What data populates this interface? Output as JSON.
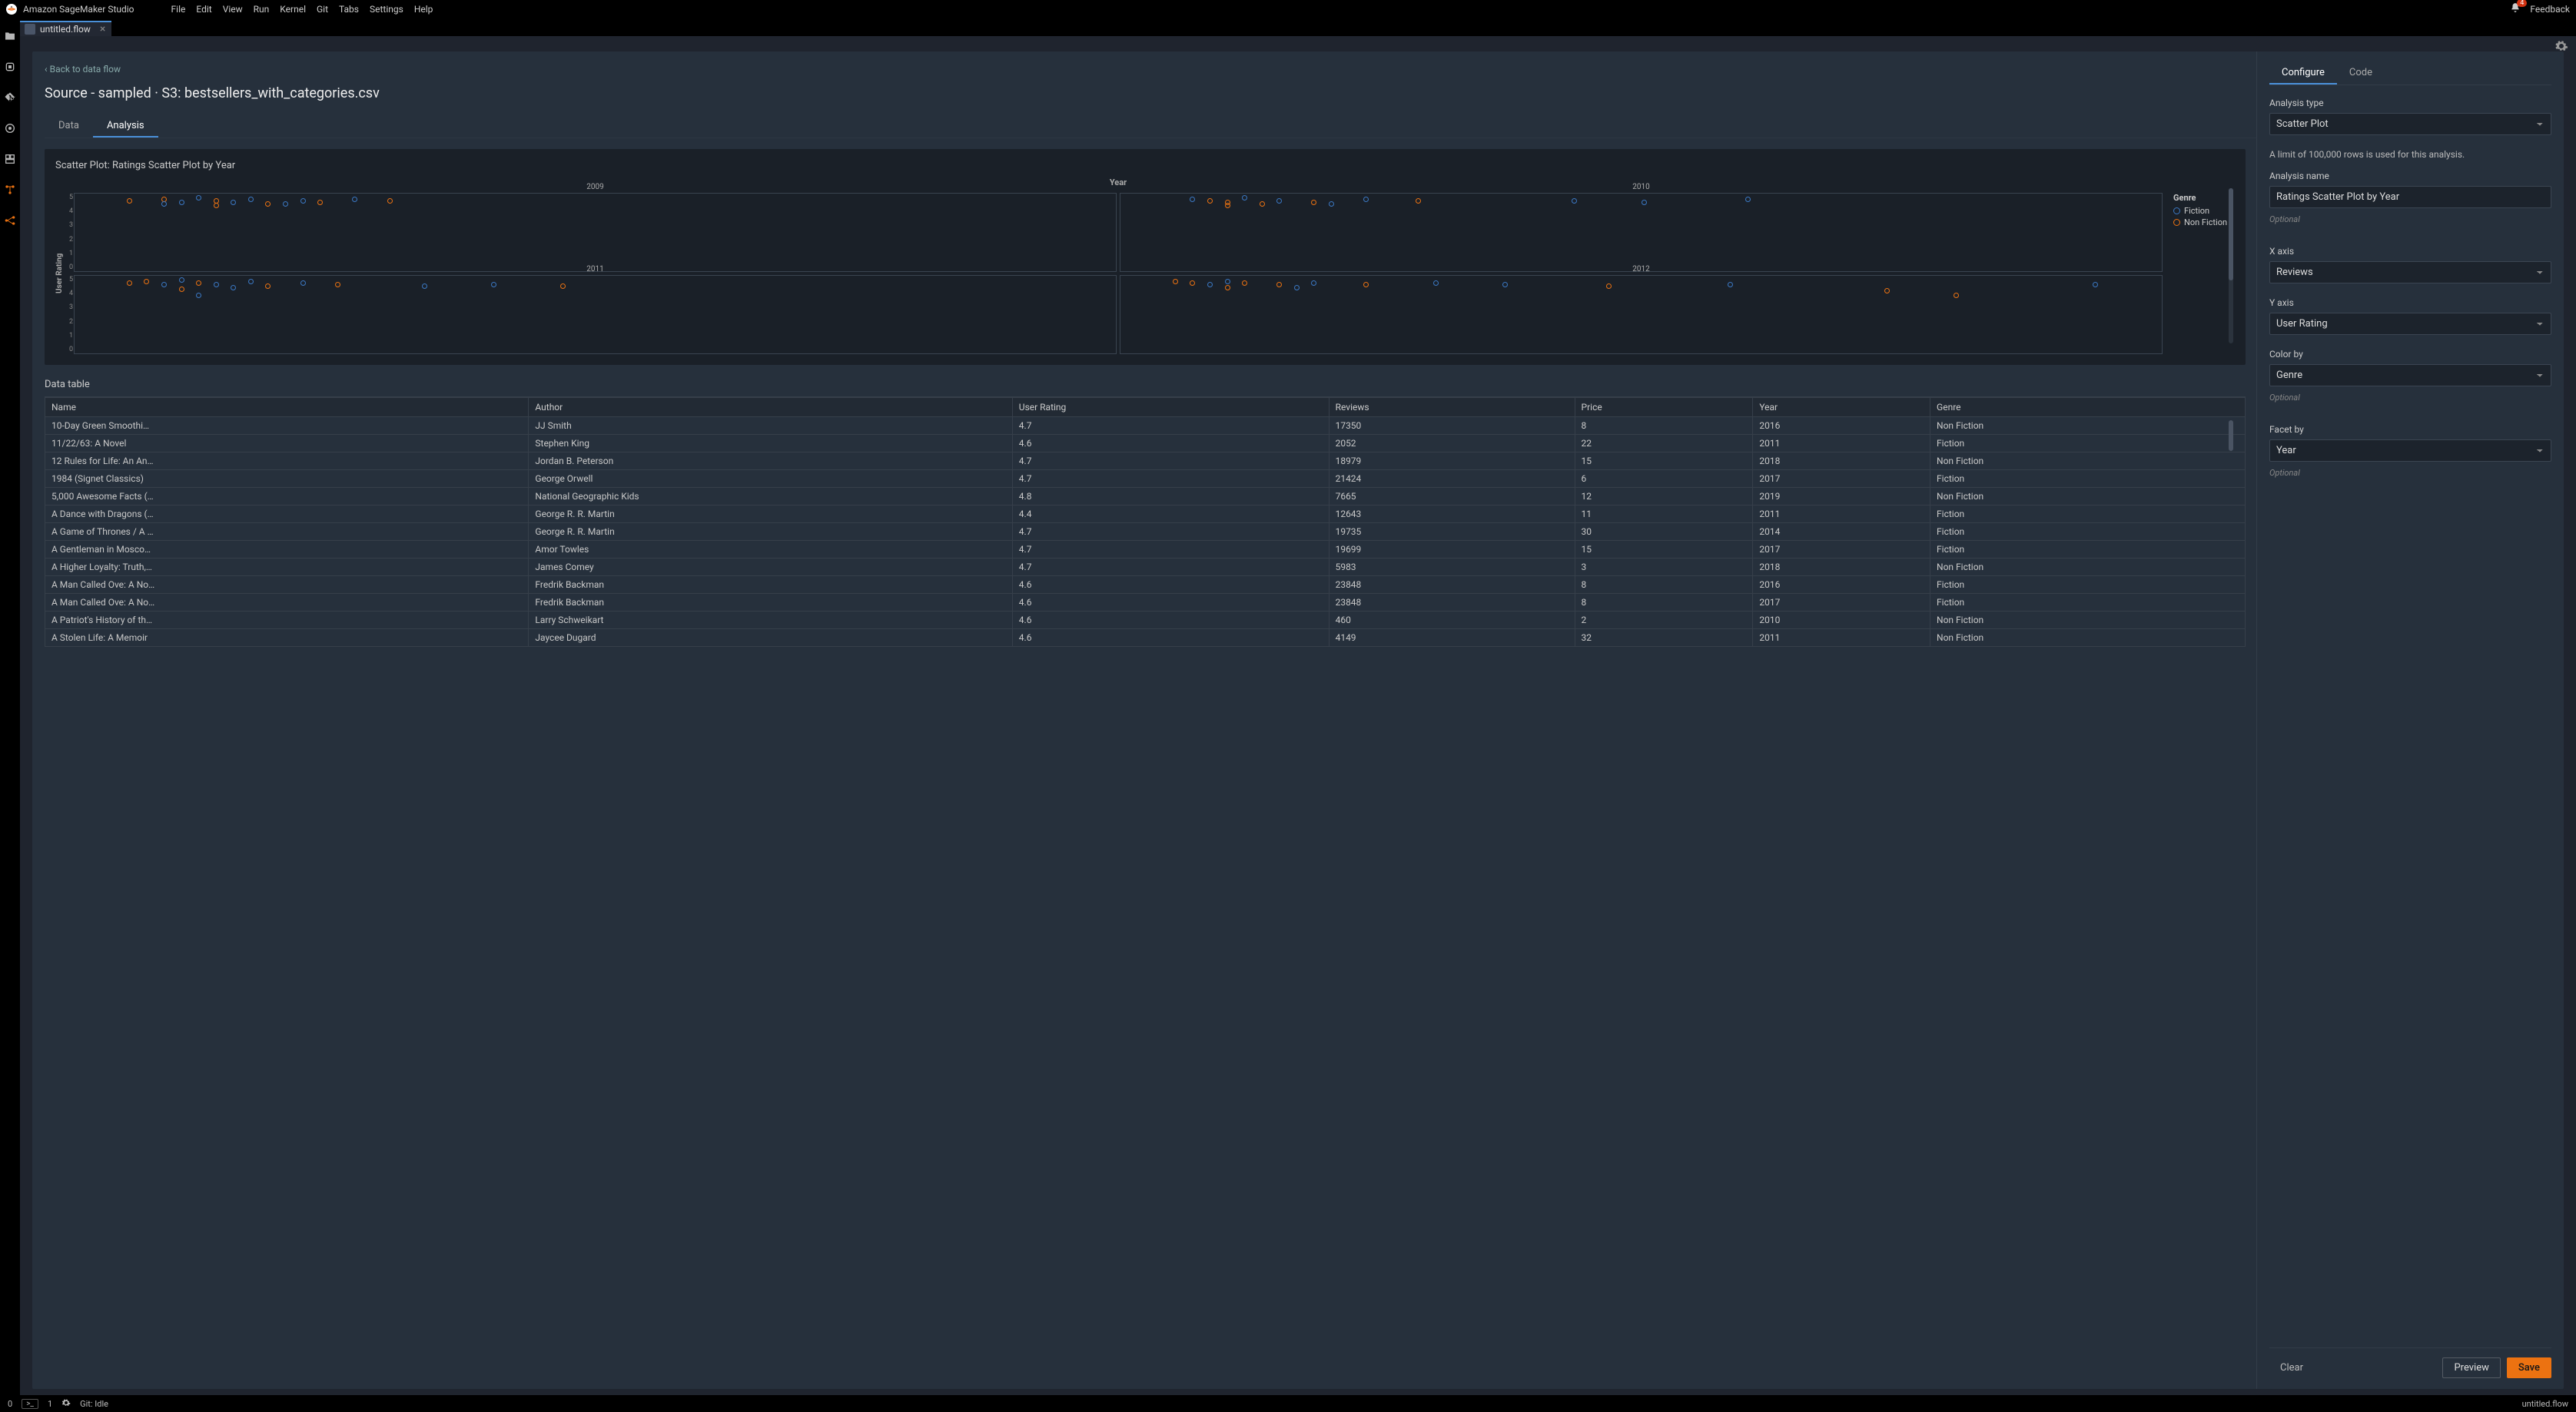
{
  "topbar": {
    "title": "Amazon SageMaker Studio",
    "menus": [
      "File",
      "Edit",
      "View",
      "Run",
      "Kernel",
      "Git",
      "Tabs",
      "Settings",
      "Help"
    ],
    "notif_count": "4",
    "feedback": "Feedback"
  },
  "tab": {
    "name": "untitled.flow"
  },
  "page": {
    "back": "Back to data flow",
    "title": "Source - sampled · S3: bestsellers_with_categories.csv"
  },
  "lefttabs": {
    "data": "Data",
    "analysis": "Analysis"
  },
  "chart": {
    "title": "Scatter Plot: Ratings Scatter Plot by Year",
    "facet_header": "Year",
    "yaxis": "User Rating",
    "facets": [
      "2009",
      "2010",
      "2011",
      "2012"
    ],
    "legend_title": "Genre",
    "legend_items": [
      {
        "label": "Fiction",
        "color": "#3b78c4"
      },
      {
        "label": "Non Fiction",
        "color": "#ec7211"
      }
    ],
    "yticks": [
      "5",
      "4",
      "3",
      "2",
      "1",
      "0"
    ],
    "colors": {
      "fiction": "#3b78c4",
      "nonfiction": "#ec7211",
      "grid": "#3a4450",
      "bg": "#1a2028"
    },
    "points": {
      "2009": [
        {
          "x": 3,
          "y": 4.7,
          "g": "n"
        },
        {
          "x": 5,
          "y": 4.8,
          "g": "n"
        },
        {
          "x": 6,
          "y": 4.6,
          "g": "f"
        },
        {
          "x": 7,
          "y": 4.9,
          "g": "f"
        },
        {
          "x": 8,
          "y": 4.7,
          "g": "n"
        },
        {
          "x": 9,
          "y": 4.6,
          "g": "f"
        },
        {
          "x": 10,
          "y": 4.8,
          "g": "f"
        },
        {
          "x": 11,
          "y": 4.5,
          "g": "n"
        },
        {
          "x": 13,
          "y": 4.7,
          "g": "f"
        },
        {
          "x": 14,
          "y": 4.6,
          "g": "n"
        },
        {
          "x": 16,
          "y": 4.8,
          "g": "f"
        },
        {
          "x": 18,
          "y": 4.7,
          "g": "n"
        },
        {
          "x": 8,
          "y": 4.4,
          "g": "n"
        },
        {
          "x": 12,
          "y": 4.5,
          "g": "f"
        },
        {
          "x": 5,
          "y": 4.5,
          "g": "f"
        }
      ],
      "2010": [
        {
          "x": 4,
          "y": 4.8,
          "g": "f"
        },
        {
          "x": 5,
          "y": 4.7,
          "g": "n"
        },
        {
          "x": 6,
          "y": 4.6,
          "g": "n"
        },
        {
          "x": 7,
          "y": 4.9,
          "g": "f"
        },
        {
          "x": 9,
          "y": 4.7,
          "g": "f"
        },
        {
          "x": 11,
          "y": 4.6,
          "g": "n"
        },
        {
          "x": 14,
          "y": 4.8,
          "g": "f"
        },
        {
          "x": 17,
          "y": 4.7,
          "g": "n"
        },
        {
          "x": 26,
          "y": 4.7,
          "g": "f"
        },
        {
          "x": 30,
          "y": 4.6,
          "g": "f"
        },
        {
          "x": 36,
          "y": 4.8,
          "g": "f"
        },
        {
          "x": 8,
          "y": 4.5,
          "g": "n"
        },
        {
          "x": 12,
          "y": 4.5,
          "g": "f"
        },
        {
          "x": 6,
          "y": 4.4,
          "g": "n"
        }
      ],
      "2011": [
        {
          "x": 3,
          "y": 4.7,
          "g": "n"
        },
        {
          "x": 4,
          "y": 4.8,
          "g": "n"
        },
        {
          "x": 5,
          "y": 4.6,
          "g": "f"
        },
        {
          "x": 6,
          "y": 4.9,
          "g": "f"
        },
        {
          "x": 7,
          "y": 4.7,
          "g": "n"
        },
        {
          "x": 8,
          "y": 4.6,
          "g": "f"
        },
        {
          "x": 10,
          "y": 4.8,
          "g": "f"
        },
        {
          "x": 11,
          "y": 4.5,
          "g": "n"
        },
        {
          "x": 13,
          "y": 4.7,
          "g": "f"
        },
        {
          "x": 15,
          "y": 4.6,
          "g": "n"
        },
        {
          "x": 20,
          "y": 4.5,
          "g": "f"
        },
        {
          "x": 24,
          "y": 4.6,
          "g": "f"
        },
        {
          "x": 28,
          "y": 4.5,
          "g": "n"
        },
        {
          "x": 6,
          "y": 4.3,
          "g": "n"
        },
        {
          "x": 9,
          "y": 4.4,
          "g": "f"
        },
        {
          "x": 7,
          "y": 3.9,
          "g": "f"
        }
      ],
      "2012": [
        {
          "x": 3,
          "y": 4.8,
          "g": "n"
        },
        {
          "x": 4,
          "y": 4.7,
          "g": "n"
        },
        {
          "x": 5,
          "y": 4.6,
          "g": "f"
        },
        {
          "x": 6,
          "y": 4.8,
          "g": "f"
        },
        {
          "x": 7,
          "y": 4.7,
          "g": "n"
        },
        {
          "x": 9,
          "y": 4.6,
          "g": "n"
        },
        {
          "x": 11,
          "y": 4.7,
          "g": "f"
        },
        {
          "x": 14,
          "y": 4.6,
          "g": "n"
        },
        {
          "x": 18,
          "y": 4.7,
          "g": "f"
        },
        {
          "x": 22,
          "y": 4.6,
          "g": "f"
        },
        {
          "x": 28,
          "y": 4.5,
          "g": "n"
        },
        {
          "x": 35,
          "y": 4.6,
          "g": "f"
        },
        {
          "x": 56,
          "y": 4.6,
          "g": "f"
        },
        {
          "x": 44,
          "y": 4.2,
          "g": "n"
        },
        {
          "x": 48,
          "y": 3.9,
          "g": "n"
        },
        {
          "x": 6,
          "y": 4.4,
          "g": "n"
        },
        {
          "x": 10,
          "y": 4.4,
          "g": "f"
        }
      ]
    }
  },
  "datatable": {
    "label": "Data table",
    "columns": [
      "Name",
      "Author",
      "User Rating",
      "Reviews",
      "Price",
      "Year",
      "Genre"
    ],
    "rows": [
      [
        "10-Day Green Smoothi…",
        "JJ Smith",
        "4.7",
        "17350",
        "8",
        "2016",
        "Non Fiction"
      ],
      [
        "11/22/63: A Novel",
        "Stephen King",
        "4.6",
        "2052",
        "22",
        "2011",
        "Fiction"
      ],
      [
        "12 Rules for Life: An An…",
        "Jordan B. Peterson",
        "4.7",
        "18979",
        "15",
        "2018",
        "Non Fiction"
      ],
      [
        "1984 (Signet Classics)",
        "George Orwell",
        "4.7",
        "21424",
        "6",
        "2017",
        "Fiction"
      ],
      [
        "5,000 Awesome Facts (…",
        "National Geographic Kids",
        "4.8",
        "7665",
        "12",
        "2019",
        "Non Fiction"
      ],
      [
        "A Dance with Dragons (…",
        "George R. R. Martin",
        "4.4",
        "12643",
        "11",
        "2011",
        "Fiction"
      ],
      [
        "A Game of Thrones / A …",
        "George R. R. Martin",
        "4.7",
        "19735",
        "30",
        "2014",
        "Fiction"
      ],
      [
        "A Gentleman in Mosco…",
        "Amor Towles",
        "4.7",
        "19699",
        "15",
        "2017",
        "Fiction"
      ],
      [
        "A Higher Loyalty: Truth,…",
        "James Comey",
        "4.7",
        "5983",
        "3",
        "2018",
        "Non Fiction"
      ],
      [
        "A Man Called Ove: A No…",
        "Fredrik Backman",
        "4.6",
        "23848",
        "8",
        "2016",
        "Fiction"
      ],
      [
        "A Man Called Ove: A No…",
        "Fredrik Backman",
        "4.6",
        "23848",
        "8",
        "2017",
        "Fiction"
      ],
      [
        "A Patriot's History of th…",
        "Larry Schweikart",
        "4.6",
        "460",
        "2",
        "2010",
        "Non Fiction"
      ],
      [
        "A Stolen Life: A Memoir",
        "Jaycee Dugard",
        "4.6",
        "4149",
        "32",
        "2011",
        "Non Fiction"
      ]
    ]
  },
  "rightpane": {
    "tabs": {
      "configure": "Configure",
      "code": "Code"
    },
    "analysis_type_label": "Analysis type",
    "analysis_type_value": "Scatter Plot",
    "limit_info": "A limit of 100,000 rows is used for this analysis.",
    "analysis_name_label": "Analysis name",
    "analysis_name_value": "Ratings Scatter Plot by Year",
    "optional": "Optional",
    "xaxis_label": "X axis",
    "xaxis_value": "Reviews",
    "yaxis_label": "Y axis",
    "yaxis_value": "User Rating",
    "colorby_label": "Color by",
    "colorby_value": "Genre",
    "facetby_label": "Facet by",
    "facetby_value": "Year",
    "clear": "Clear",
    "preview": "Preview",
    "save": "Save"
  },
  "statusbar": {
    "zero": "0",
    "one": "1",
    "git": "Git: Idle",
    "file": "untitled.flow"
  }
}
